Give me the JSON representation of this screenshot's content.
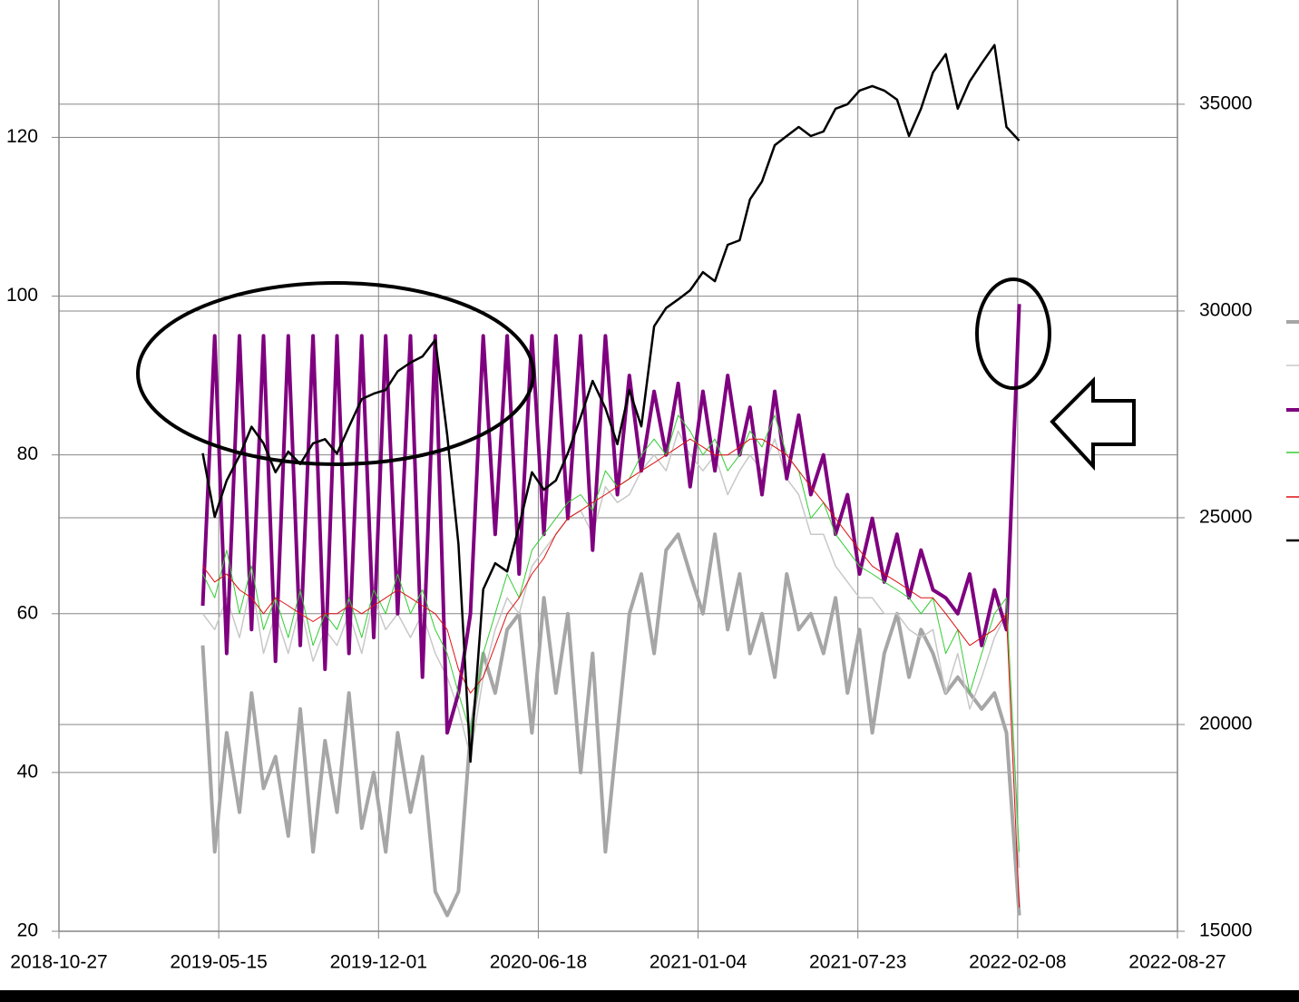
{
  "chart_data": {
    "type": "line",
    "x": [
      "2019-04-25",
      "2019-05-10",
      "2019-05-25",
      "2019-06-10",
      "2019-06-25",
      "2019-07-10",
      "2019-07-25",
      "2019-08-10",
      "2019-08-25",
      "2019-09-10",
      "2019-09-25",
      "2019-10-10",
      "2019-10-25",
      "2019-11-10",
      "2019-11-25",
      "2019-12-10",
      "2019-12-25",
      "2020-01-10",
      "2020-01-25",
      "2020-02-10",
      "2020-02-25",
      "2020-03-10",
      "2020-03-25",
      "2020-04-10",
      "2020-04-25",
      "2020-05-10",
      "2020-05-25",
      "2020-06-10",
      "2020-06-25",
      "2020-07-10",
      "2020-07-25",
      "2020-08-10",
      "2020-08-25",
      "2020-09-10",
      "2020-09-25",
      "2020-10-10",
      "2020-10-25",
      "2020-11-10",
      "2020-11-25",
      "2020-12-10",
      "2020-12-25",
      "2021-01-10",
      "2021-01-25",
      "2021-02-10",
      "2021-02-25",
      "2021-03-10",
      "2021-03-25",
      "2021-04-10",
      "2021-04-25",
      "2021-05-10",
      "2021-05-25",
      "2021-06-10",
      "2021-06-25",
      "2021-07-10",
      "2021-07-25",
      "2021-08-10",
      "2021-08-25",
      "2021-09-10",
      "2021-09-25",
      "2021-10-10",
      "2021-10-25",
      "2021-11-10",
      "2021-11-25",
      "2021-12-10",
      "2021-12-25",
      "2022-01-10",
      "2022-01-25",
      "2022-02-10"
    ],
    "series": [
      {
        "color": "#a6a6a6",
        "line_width": 4,
        "values": [
          56,
          30,
          45,
          35,
          50,
          38,
          42,
          32,
          48,
          30,
          44,
          35,
          50,
          33,
          40,
          30,
          45,
          35,
          42,
          25,
          22,
          25,
          45,
          55,
          50,
          58,
          60,
          45,
          62,
          50,
          60,
          40,
          55,
          30,
          45,
          60,
          65,
          55,
          68,
          70,
          65,
          60,
          70,
          58,
          65,
          55,
          60,
          52,
          65,
          58,
          60,
          55,
          62,
          50,
          58,
          45,
          55,
          60,
          52,
          58,
          55,
          50,
          52,
          50,
          48,
          50,
          45,
          22
        ]
      },
      {
        "color": "#c8c8c8",
        "line_width": 1.5,
        "values": [
          60,
          58,
          62,
          57,
          64,
          55,
          60,
          55,
          61,
          54,
          58,
          56,
          60,
          55,
          62,
          58,
          60,
          57,
          60,
          55,
          52,
          48,
          42,
          52,
          58,
          62,
          60,
          66,
          68,
          70,
          72,
          73,
          70,
          76,
          74,
          75,
          78,
          80,
          78,
          83,
          80,
          78,
          80,
          75,
          78,
          80,
          78,
          82,
          77,
          75,
          70,
          70,
          66,
          64,
          62,
          62,
          60,
          60,
          58,
          57,
          58,
          50,
          55,
          48,
          52,
          57,
          60,
          28
        ]
      },
      {
        "color": "#7f007f",
        "line_width": 4,
        "values": [
          61,
          95,
          55,
          95,
          58,
          95,
          54,
          95,
          56,
          95,
          53,
          95,
          55,
          95,
          57,
          95,
          60,
          95,
          52,
          95,
          45,
          50,
          60,
          95,
          70,
          95,
          65,
          95,
          70,
          95,
          72,
          95,
          68,
          95,
          75,
          90,
          78,
          88,
          80,
          89,
          76,
          88,
          78,
          90,
          80,
          86,
          75,
          88,
          77,
          85,
          75,
          80,
          70,
          75,
          65,
          72,
          64,
          70,
          62,
          68,
          63,
          62,
          60,
          65,
          56,
          63,
          58,
          99
        ]
      },
      {
        "color": "#33cc33",
        "line_width": 1,
        "values": [
          65,
          62,
          68,
          60,
          66,
          58,
          62,
          57,
          63,
          56,
          60,
          58,
          62,
          57,
          63,
          60,
          65,
          60,
          63,
          58,
          55,
          50,
          45,
          55,
          60,
          65,
          62,
          68,
          70,
          72,
          74,
          75,
          73,
          78,
          76,
          77,
          80,
          82,
          80,
          85,
          83,
          80,
          82,
          78,
          80,
          83,
          81,
          85,
          80,
          78,
          72,
          74,
          70,
          68,
          66,
          65,
          64,
          63,
          62,
          60,
          62,
          55,
          58,
          50,
          55,
          60,
          62,
          30
        ]
      },
      {
        "color": "#e01010",
        "line_width": 1,
        "values": [
          66,
          64,
          65,
          63,
          62,
          60,
          62,
          61,
          60,
          59,
          60,
          60,
          61,
          60,
          61,
          62,
          63,
          62,
          61,
          60,
          58,
          53,
          50,
          52,
          56,
          60,
          62,
          65,
          67,
          70,
          72,
          73,
          74,
          75,
          76,
          77,
          78,
          79,
          80,
          81,
          82,
          81,
          80,
          80,
          81,
          82,
          82,
          81,
          80,
          78,
          76,
          74,
          72,
          70,
          68,
          66,
          65,
          64,
          63,
          62,
          62,
          60,
          58,
          56,
          57,
          58,
          60,
          23
        ]
      },
      {
        "color": "#000000",
        "line_width": 2.5,
        "axis": "y2",
        "values": [
          26560,
          25020,
          25900,
          26500,
          27200,
          26800,
          26100,
          26600,
          26300,
          26800,
          26900,
          26550,
          27200,
          27870,
          28000,
          28090,
          28540,
          28750,
          28900,
          29300,
          27000,
          24360,
          19100,
          23270,
          23900,
          23700,
          24800,
          26100,
          25680,
          25900,
          26560,
          27430,
          28310,
          27650,
          26780,
          28090,
          27210,
          29630,
          30070,
          30280,
          30500,
          30940,
          30720,
          31600,
          31710,
          32700,
          33130,
          34010,
          34230,
          34450,
          34230,
          34340,
          34890,
          35000,
          35330,
          35440,
          35330,
          35110,
          34230,
          34890,
          35770,
          36210,
          34890,
          35550,
          35990,
          36430,
          34450,
          34120
        ]
      }
    ],
    "xlim": [
      "2018-10-27",
      "2022-08-27"
    ],
    "xticks": [
      "2018-10-27",
      "2019-05-15",
      "2019-12-01",
      "2020-06-18",
      "2021-01-04",
      "2021-07-23",
      "2022-02-08",
      "2022-08-27"
    ],
    "ylim": [
      20,
      137.3
    ],
    "yticks": [
      20,
      40,
      60,
      80,
      100,
      120
    ],
    "y2lim": [
      15000,
      37520
    ],
    "y2ticks": [
      15000,
      20000,
      25000,
      30000,
      35000
    ],
    "grid": true
  }
}
